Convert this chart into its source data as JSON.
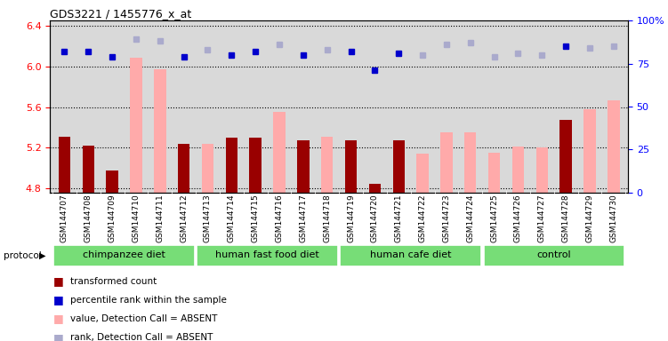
{
  "title": "GDS3221 / 1455776_x_at",
  "samples": [
    "GSM144707",
    "GSM144708",
    "GSM144709",
    "GSM144710",
    "GSM144711",
    "GSM144712",
    "GSM144713",
    "GSM144714",
    "GSM144715",
    "GSM144716",
    "GSM144717",
    "GSM144718",
    "GSM144719",
    "GSM144720",
    "GSM144721",
    "GSM144722",
    "GSM144723",
    "GSM144724",
    "GSM144725",
    "GSM144726",
    "GSM144727",
    "GSM144728",
    "GSM144729",
    "GSM144730"
  ],
  "values": [
    5.31,
    5.22,
    4.98,
    null,
    null,
    5.24,
    null,
    5.3,
    5.3,
    null,
    5.27,
    null,
    5.27,
    4.85,
    5.27,
    null,
    null,
    null,
    null,
    null,
    null,
    5.47,
    null,
    null
  ],
  "absent_values": [
    null,
    null,
    null,
    6.08,
    5.97,
    null,
    5.24,
    null,
    null,
    5.55,
    null,
    5.31,
    null,
    null,
    null,
    5.14,
    5.35,
    5.35,
    5.15,
    5.21,
    5.2,
    null,
    5.58,
    5.67
  ],
  "rank_present": [
    82,
    82,
    79,
    null,
    null,
    79,
    null,
    80,
    82,
    null,
    80,
    null,
    82,
    71,
    81,
    null,
    null,
    null,
    null,
    null,
    null,
    85,
    null,
    null
  ],
  "rank_absent": [
    null,
    null,
    null,
    89,
    88,
    null,
    83,
    null,
    null,
    86,
    null,
    83,
    null,
    null,
    null,
    80,
    86,
    87,
    79,
    81,
    80,
    null,
    84,
    85
  ],
  "ylim_left": [
    4.76,
    6.45
  ],
  "ylim_right": [
    0,
    100
  ],
  "yticks_left": [
    4.8,
    5.2,
    5.6,
    6.0,
    6.4
  ],
  "yticks_right": [
    0,
    25,
    50,
    75,
    100
  ],
  "groups": [
    {
      "label": "chimpanzee diet",
      "start": 0,
      "end": 5
    },
    {
      "label": "human fast food diet",
      "start": 6,
      "end": 11
    },
    {
      "label": "human cafe diet",
      "start": 12,
      "end": 17
    },
    {
      "label": "control",
      "start": 18,
      "end": 23
    }
  ],
  "bar_color_present": "#990000",
  "bar_color_absent": "#ffaaaa",
  "dot_color_present": "#0000cc",
  "dot_color_absent": "#aaaacc",
  "background_color": "#d9d9d9",
  "group_color": "#77dd77",
  "grid_color": "#000000",
  "bar_width": 0.5,
  "fig_bg": "#ffffff"
}
